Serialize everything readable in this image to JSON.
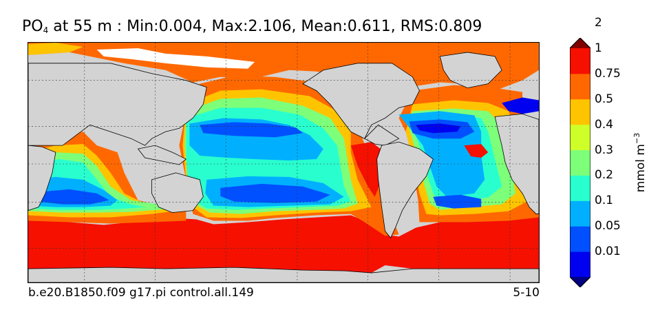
{
  "title": {
    "variable": "PO",
    "subscript": "4",
    "rest": " at 55 m : Min:0.004, Max:2.106, Mean:0.611, RMS:0.809"
  },
  "map": {
    "land_color": "#d3d3d3",
    "grid_lines": true,
    "lon_range": [
      30,
      390
    ],
    "lat_range": [
      -78,
      90
    ]
  },
  "colorbar": {
    "unit_text": "mmol m",
    "unit_exponent": "−3",
    "levels": [
      "0.01",
      "0.05",
      "0.1",
      "0.2",
      "0.3",
      "0.4",
      "0.5",
      "0.75",
      "1",
      "2"
    ],
    "colors": [
      "#000080",
      "#0000f0",
      "#0050ff",
      "#00b0ff",
      "#29ffce",
      "#7dff7a",
      "#ceff29",
      "#ffc400",
      "#ff6800",
      "#f51000",
      "#800000"
    ],
    "extend": "both"
  },
  "footer": {
    "run_name": "b.e20.B1850.f09 g17.pi control.all.149",
    "months": "5-10"
  }
}
